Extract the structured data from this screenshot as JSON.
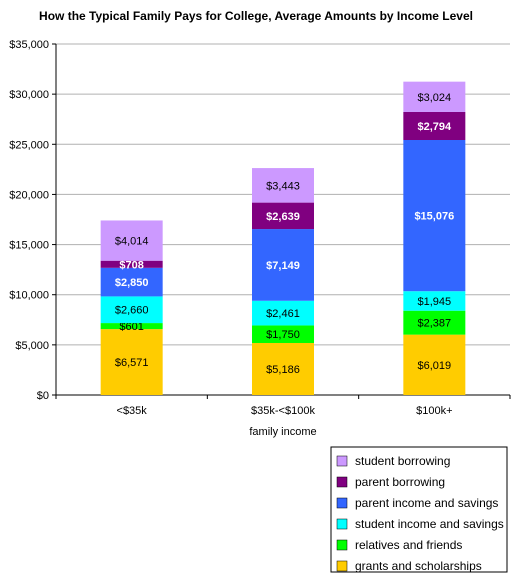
{
  "chart_data": {
    "type": "bar",
    "stacked": true,
    "title": "How the Typical Family Pays for College, Average Amounts by Income Level",
    "xlabel": "family income",
    "ylabel": "",
    "ylim": [
      0,
      35000
    ],
    "yticks": [
      0,
      5000,
      10000,
      15000,
      20000,
      25000,
      30000,
      35000
    ],
    "ytick_labels": [
      "$0",
      "$5,000",
      "$10,000",
      "$15,000",
      "$20,000",
      "$25,000",
      "$30,000",
      "$35,000"
    ],
    "categories": [
      "<$35k",
      "$35k-<$100k",
      "$100k+"
    ],
    "grid": true,
    "legend_position": "bottom-right",
    "series": [
      {
        "name": "grants and scholarships",
        "color": "#ffcc00",
        "label_color": "#000000",
        "label_bold": false,
        "values": [
          6571,
          5186,
          6019
        ],
        "labels": [
          "$6,571",
          "$5,186",
          "$6,019"
        ]
      },
      {
        "name": "relatives and friends",
        "color": "#00ff00",
        "label_color": "#000000",
        "label_bold": false,
        "values": [
          601,
          1750,
          2387
        ],
        "labels": [
          "$601",
          "$1,750",
          "$2,387"
        ]
      },
      {
        "name": "student income and savings",
        "color": "#00ffff",
        "label_color": "#000000",
        "label_bold": false,
        "values": [
          2660,
          2461,
          1945
        ],
        "labels": [
          "$2,660",
          "$2,461",
          "$1,945"
        ]
      },
      {
        "name": "parent income and savings",
        "color": "#3366ff",
        "label_color": "#ffffff",
        "label_bold": true,
        "values": [
          2850,
          7149,
          15076
        ],
        "labels": [
          "$2,850",
          "$7,149",
          "$15,076"
        ]
      },
      {
        "name": "parent borrowing",
        "color": "#800080",
        "label_color": "#ffffff",
        "label_bold": true,
        "values": [
          708,
          2639,
          2794
        ],
        "labels": [
          "$708",
          "$2,639",
          "$2,794"
        ]
      },
      {
        "name": "student borrowing",
        "color": "#cc99ff",
        "label_color": "#000000",
        "label_bold": false,
        "values": [
          4014,
          3443,
          3024
        ],
        "labels": [
          "$4,014",
          "$3,443",
          "$3,024"
        ]
      }
    ]
  }
}
